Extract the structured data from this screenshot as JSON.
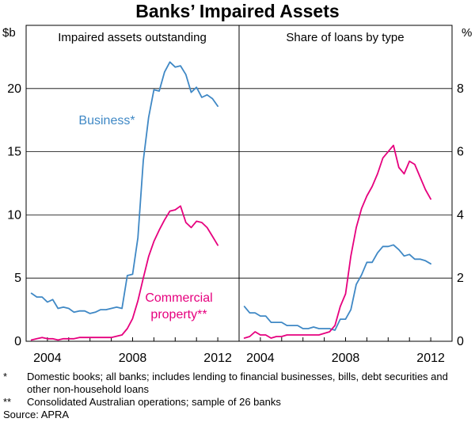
{
  "chart_data": {
    "title": "Banks’ Impaired Assets",
    "type": "line",
    "panels": [
      {
        "title": "Impaired assets outstanding",
        "axis_unit_left": "$b",
        "ylim": [
          0,
          25
        ],
        "y_ticks": [
          0,
          5,
          10,
          15,
          20
        ],
        "xlim": [
          2003.0,
          2013.0
        ],
        "x_ticks": [
          2004,
          2008,
          2012
        ],
        "series": [
          {
            "name": "Business*",
            "color": "#3f88c5",
            "x": [
              2003.25,
              2003.5,
              2003.75,
              2004.0,
              2004.25,
              2004.5,
              2004.75,
              2005.0,
              2005.25,
              2005.5,
              2005.75,
              2006.0,
              2006.25,
              2006.5,
              2006.75,
              2007.0,
              2007.25,
              2007.5,
              2007.75,
              2008.0,
              2008.25,
              2008.5,
              2008.75,
              2009.0,
              2009.25,
              2009.5,
              2009.75,
              2010.0,
              2010.25,
              2010.5,
              2010.75,
              2011.0,
              2011.25,
              2011.5,
              2011.75,
              2012.0
            ],
            "values": [
              3.8,
              3.5,
              3.5,
              3.1,
              3.3,
              2.6,
              2.7,
              2.6,
              2.3,
              2.4,
              2.4,
              2.2,
              2.3,
              2.5,
              2.5,
              2.6,
              2.7,
              2.6,
              5.2,
              5.3,
              8.2,
              14.3,
              17.7,
              19.9,
              19.8,
              21.3,
              22.1,
              21.7,
              21.8,
              21.1,
              19.7,
              20.1,
              19.3,
              19.5,
              19.2,
              18.6
            ]
          },
          {
            "name": "Commercial property**",
            "color": "#e6007e",
            "x": [
              2003.25,
              2003.5,
              2003.75,
              2004.0,
              2004.25,
              2004.5,
              2004.75,
              2005.0,
              2005.25,
              2005.5,
              2005.75,
              2006.0,
              2006.25,
              2006.5,
              2006.75,
              2007.0,
              2007.25,
              2007.5,
              2007.75,
              2008.0,
              2008.25,
              2008.5,
              2008.75,
              2009.0,
              2009.25,
              2009.5,
              2009.75,
              2010.0,
              2010.25,
              2010.5,
              2010.75,
              2011.0,
              2011.25,
              2011.5,
              2011.75,
              2012.0
            ],
            "values": [
              0.1,
              0.2,
              0.3,
              0.2,
              0.2,
              0.1,
              0.2,
              0.2,
              0.2,
              0.3,
              0.3,
              0.3,
              0.3,
              0.3,
              0.3,
              0.3,
              0.4,
              0.5,
              1.0,
              1.8,
              3.2,
              5.0,
              6.7,
              7.9,
              8.8,
              9.6,
              10.3,
              10.4,
              10.7,
              9.4,
              9.0,
              9.5,
              9.4,
              9.0,
              8.3,
              7.6
            ]
          }
        ],
        "annotations": [
          {
            "text": "Business*",
            "color": "#3f88c5"
          },
          {
            "lines": [
              "Commercial",
              "property**"
            ],
            "color": "#e6007e"
          }
        ]
      },
      {
        "title": "Share of loans by type",
        "axis_unit_right": "%",
        "ylim": [
          0,
          10
        ],
        "y_ticks": [
          0,
          2,
          4,
          6,
          8
        ],
        "xlim": [
          2003.0,
          2013.0
        ],
        "x_ticks": [
          2004,
          2008,
          2012
        ],
        "series": [
          {
            "name": "Business",
            "color": "#3f88c5",
            "x": [
              2003.25,
              2003.5,
              2003.75,
              2004.0,
              2004.25,
              2004.5,
              2004.75,
              2005.0,
              2005.25,
              2005.5,
              2005.75,
              2006.0,
              2006.25,
              2006.5,
              2006.75,
              2007.0,
              2007.25,
              2007.5,
              2007.75,
              2008.0,
              2008.25,
              2008.5,
              2008.75,
              2009.0,
              2009.25,
              2009.5,
              2009.75,
              2010.0,
              2010.25,
              2010.5,
              2010.75,
              2011.0,
              2011.25,
              2011.5,
              2011.75,
              2012.0
            ],
            "values": [
              1.1,
              0.9,
              0.9,
              0.8,
              0.8,
              0.6,
              0.6,
              0.6,
              0.5,
              0.5,
              0.5,
              0.4,
              0.4,
              0.45,
              0.4,
              0.4,
              0.4,
              0.35,
              0.7,
              0.7,
              1.0,
              1.8,
              2.1,
              2.5,
              2.5,
              2.8,
              3.0,
              3.0,
              3.05,
              2.9,
              2.7,
              2.75,
              2.6,
              2.6,
              2.55,
              2.45
            ]
          },
          {
            "name": "Commercial property",
            "color": "#e6007e",
            "x": [
              2003.25,
              2003.5,
              2003.75,
              2004.0,
              2004.25,
              2004.5,
              2004.75,
              2005.0,
              2005.25,
              2005.5,
              2005.75,
              2006.0,
              2006.25,
              2006.5,
              2006.75,
              2007.0,
              2007.25,
              2007.5,
              2007.75,
              2008.0,
              2008.25,
              2008.5,
              2008.75,
              2009.0,
              2009.25,
              2009.5,
              2009.75,
              2010.0,
              2010.25,
              2010.5,
              2010.75,
              2011.0,
              2011.25,
              2011.5,
              2011.75,
              2012.0
            ],
            "values": [
              0.1,
              0.15,
              0.3,
              0.2,
              0.2,
              0.1,
              0.15,
              0.15,
              0.2,
              0.2,
              0.2,
              0.2,
              0.2,
              0.2,
              0.2,
              0.25,
              0.3,
              0.5,
              1.1,
              1.5,
              2.7,
              3.6,
              4.2,
              4.6,
              4.9,
              5.3,
              5.8,
              6.0,
              6.2,
              5.5,
              5.3,
              5.7,
              5.6,
              5.2,
              4.8,
              4.5
            ]
          }
        ]
      }
    ],
    "notes": [
      {
        "mark": "*",
        "text": "Domestic books; all banks; includes lending to financial businesses, bills, debt securities and other non-household loans"
      },
      {
        "mark": "**",
        "text": "Consolidated Australian operations; sample of 26 banks"
      }
    ],
    "source": "Source: APRA"
  }
}
